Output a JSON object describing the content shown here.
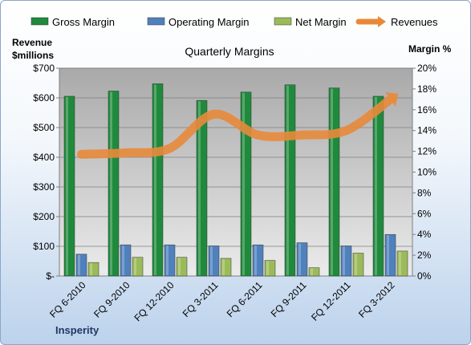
{
  "chart_data": {
    "type": "bar",
    "title": "Quarterly Margins",
    "categories": [
      "FQ 6-2010",
      "FQ 9-2010",
      "FQ 12-2010",
      "FQ 3-2011",
      "FQ 6-2011",
      "FQ 9-2011",
      "FQ 12-2011",
      "FQ 3-2012"
    ],
    "y_left": {
      "label_line1": "Revenue",
      "label_line2": "$millions",
      "range": [
        0,
        700
      ],
      "ticks": [
        "$-",
        "$100",
        "$200",
        "$300",
        "$400",
        "$500",
        "$600",
        "$700"
      ]
    },
    "y_right": {
      "label": "Margin %",
      "range": [
        0,
        20
      ],
      "ticks": [
        "0%",
        "2%",
        "4%",
        "6%",
        "8%",
        "10%",
        "12%",
        "14%",
        "16%",
        "18%",
        "20%"
      ]
    },
    "series": [
      {
        "name": "Gross Margin",
        "type": "bar",
        "axis": "right",
        "color": "#1f8a3c",
        "values": [
          17.3,
          17.8,
          18.5,
          16.9,
          17.7,
          18.4,
          18.1,
          17.3
        ]
      },
      {
        "name": "Operating Margin",
        "type": "bar",
        "axis": "right",
        "color": "#4f81bd",
        "values": [
          2.1,
          3.0,
          3.0,
          2.9,
          3.0,
          3.2,
          2.9,
          4.0
        ]
      },
      {
        "name": "Net Margin",
        "type": "bar",
        "axis": "right",
        "color": "#9bbb59",
        "values": [
          1.3,
          1.8,
          1.8,
          1.7,
          1.5,
          0.8,
          2.2,
          2.4
        ]
      },
      {
        "name": "Revenues",
        "type": "line",
        "axis": "left",
        "color": "#e8893a",
        "values": [
          410,
          415,
          430,
          545,
          475,
          475,
          490,
          595
        ]
      }
    ],
    "legend_position": "top",
    "source_label": "Insperity"
  }
}
